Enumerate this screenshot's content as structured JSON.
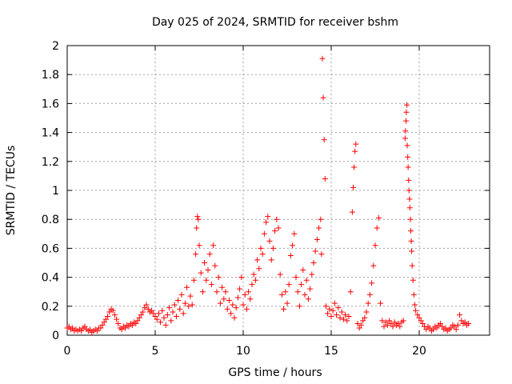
{
  "chart_data": {
    "type": "scatter",
    "title": "Day 025 of 2024, SRMTID for receiver bshm",
    "xlabel": "GPS time / hours",
    "ylabel": "SRMTID / TECUs",
    "xlim": [
      0,
      24
    ],
    "ylim": [
      0,
      2
    ],
    "xticks": [
      0,
      5,
      10,
      15,
      20
    ],
    "xtick_labels": [
      "0",
      "5",
      "10",
      "15",
      "20"
    ],
    "yticks": [
      0,
      0.2,
      0.4,
      0.6,
      0.8,
      1,
      1.2,
      1.4,
      1.6,
      1.8,
      2
    ],
    "ytick_labels": [
      "0",
      "0.2",
      "0.4",
      "0.6",
      "0.8",
      "1",
      "1.2",
      "1.4",
      "1.6",
      "1.8",
      "2"
    ],
    "grid": true,
    "marker": "+",
    "color": "#ff0000",
    "series": [
      {
        "name": "SRMTID",
        "points": [
          [
            0.0,
            0.05
          ],
          [
            0.1,
            0.06
          ],
          [
            0.2,
            0.04
          ],
          [
            0.3,
            0.05
          ],
          [
            0.4,
            0.03
          ],
          [
            0.5,
            0.04
          ],
          [
            0.6,
            0.03
          ],
          [
            0.7,
            0.04
          ],
          [
            0.8,
            0.03
          ],
          [
            0.9,
            0.05
          ],
          [
            1.0,
            0.06
          ],
          [
            1.1,
            0.04
          ],
          [
            1.2,
            0.03
          ],
          [
            1.3,
            0.04
          ],
          [
            1.4,
            0.02
          ],
          [
            1.5,
            0.03
          ],
          [
            1.6,
            0.04
          ],
          [
            1.7,
            0.03
          ],
          [
            1.8,
            0.05
          ],
          [
            1.9,
            0.05
          ],
          [
            2.0,
            0.07
          ],
          [
            2.1,
            0.09
          ],
          [
            2.2,
            0.11
          ],
          [
            2.3,
            0.13
          ],
          [
            2.4,
            0.16
          ],
          [
            2.5,
            0.18
          ],
          [
            2.6,
            0.17
          ],
          [
            2.7,
            0.14
          ],
          [
            2.8,
            0.11
          ],
          [
            2.9,
            0.08
          ],
          [
            3.0,
            0.05
          ],
          [
            3.1,
            0.04
          ],
          [
            3.2,
            0.06
          ],
          [
            3.3,
            0.05
          ],
          [
            3.4,
            0.07
          ],
          [
            3.5,
            0.06
          ],
          [
            3.6,
            0.08
          ],
          [
            3.7,
            0.07
          ],
          [
            3.8,
            0.09
          ],
          [
            3.9,
            0.08
          ],
          [
            4.0,
            0.1
          ],
          [
            4.1,
            0.12
          ],
          [
            4.2,
            0.14
          ],
          [
            4.3,
            0.16
          ],
          [
            4.4,
            0.19
          ],
          [
            4.5,
            0.21
          ],
          [
            4.6,
            0.18
          ],
          [
            4.7,
            0.16
          ],
          [
            4.8,
            0.17
          ],
          [
            4.9,
            0.15
          ],
          [
            5.0,
            0.13
          ],
          [
            5.1,
            0.11
          ],
          [
            5.2,
            0.15
          ],
          [
            5.3,
            0.09
          ],
          [
            5.4,
            0.17
          ],
          [
            5.5,
            0.12
          ],
          [
            5.6,
            0.07
          ],
          [
            5.7,
            0.14
          ],
          [
            5.8,
            0.19
          ],
          [
            5.9,
            0.1
          ],
          [
            6.0,
            0.16
          ],
          [
            6.1,
            0.21
          ],
          [
            6.2,
            0.13
          ],
          [
            6.3,
            0.24
          ],
          [
            6.4,
            0.18
          ],
          [
            6.5,
            0.28
          ],
          [
            6.6,
            0.15
          ],
          [
            6.7,
            0.22
          ],
          [
            6.8,
            0.33
          ],
          [
            6.9,
            0.2
          ],
          [
            7.0,
            0.27
          ],
          [
            7.1,
            0.21
          ],
          [
            7.2,
            0.38
          ],
          [
            7.3,
            0.56
          ],
          [
            7.35,
            0.74
          ],
          [
            7.4,
            0.82
          ],
          [
            7.45,
            0.8
          ],
          [
            7.5,
            0.62
          ],
          [
            7.6,
            0.43
          ],
          [
            7.7,
            0.3
          ],
          [
            7.8,
            0.5
          ],
          [
            7.9,
            0.38
          ],
          [
            8.0,
            0.45
          ],
          [
            8.1,
            0.56
          ],
          [
            8.2,
            0.35
          ],
          [
            8.3,
            0.62
          ],
          [
            8.4,
            0.48
          ],
          [
            8.5,
            0.3
          ],
          [
            8.6,
            0.4
          ],
          [
            8.7,
            0.22
          ],
          [
            8.8,
            0.33
          ],
          [
            8.9,
            0.25
          ],
          [
            9.0,
            0.3
          ],
          [
            9.1,
            0.18
          ],
          [
            9.2,
            0.24
          ],
          [
            9.3,
            0.15
          ],
          [
            9.4,
            0.21
          ],
          [
            9.5,
            0.12
          ],
          [
            9.6,
            0.19
          ],
          [
            9.7,
            0.26
          ],
          [
            9.8,
            0.32
          ],
          [
            9.9,
            0.4
          ],
          [
            10.0,
            0.21
          ],
          [
            10.1,
            0.28
          ],
          [
            10.2,
            0.18
          ],
          [
            10.3,
            0.3
          ],
          [
            10.4,
            0.25
          ],
          [
            10.5,
            0.35
          ],
          [
            10.6,
            0.42
          ],
          [
            10.7,
            0.38
          ],
          [
            10.8,
            0.52
          ],
          [
            10.9,
            0.46
          ],
          [
            11.0,
            0.6
          ],
          [
            11.1,
            0.56
          ],
          [
            11.2,
            0.7
          ],
          [
            11.3,
            0.78
          ],
          [
            11.4,
            0.82
          ],
          [
            11.5,
            0.65
          ],
          [
            11.6,
            0.52
          ],
          [
            11.7,
            0.6
          ],
          [
            11.8,
            0.72
          ],
          [
            11.9,
            0.8
          ],
          [
            12.0,
            0.74
          ],
          [
            12.1,
            0.42
          ],
          [
            12.2,
            0.28
          ],
          [
            12.3,
            0.18
          ],
          [
            12.4,
            0.3
          ],
          [
            12.5,
            0.22
          ],
          [
            12.6,
            0.35
          ],
          [
            12.7,
            0.55
          ],
          [
            12.8,
            0.62
          ],
          [
            12.9,
            0.7
          ],
          [
            13.0,
            0.4
          ],
          [
            13.1,
            0.3
          ],
          [
            13.2,
            0.2
          ],
          [
            13.3,
            0.35
          ],
          [
            13.4,
            0.45
          ],
          [
            13.5,
            0.28
          ],
          [
            13.6,
            0.38
          ],
          [
            13.7,
            0.25
          ],
          [
            13.8,
            0.32
          ],
          [
            13.9,
            0.42
          ],
          [
            14.0,
            0.5
          ],
          [
            14.1,
            0.58
          ],
          [
            14.2,
            0.66
          ],
          [
            14.3,
            0.74
          ],
          [
            14.4,
            0.8
          ],
          [
            14.45,
            0.56
          ],
          [
            14.5,
            1.91
          ],
          [
            14.55,
            1.64
          ],
          [
            14.6,
            1.35
          ],
          [
            14.65,
            1.08
          ],
          [
            14.7,
            0.2
          ],
          [
            14.8,
            0.15
          ],
          [
            14.9,
            0.18
          ],
          [
            15.0,
            0.13
          ],
          [
            15.1,
            0.17
          ],
          [
            15.2,
            0.22
          ],
          [
            15.3,
            0.14
          ],
          [
            15.4,
            0.19
          ],
          [
            15.5,
            0.12
          ],
          [
            15.6,
            0.16
          ],
          [
            15.7,
            0.11
          ],
          [
            15.8,
            0.14
          ],
          [
            15.9,
            0.1
          ],
          [
            16.0,
            0.13
          ],
          [
            16.1,
            0.3
          ],
          [
            16.2,
            0.85
          ],
          [
            16.25,
            1.02
          ],
          [
            16.3,
            1.16
          ],
          [
            16.35,
            1.27
          ],
          [
            16.4,
            1.32
          ],
          [
            16.5,
            0.08
          ],
          [
            16.6,
            0.05
          ],
          [
            16.7,
            0.07
          ],
          [
            16.8,
            0.1
          ],
          [
            16.9,
            0.12
          ],
          [
            17.0,
            0.16
          ],
          [
            17.1,
            0.22
          ],
          [
            17.2,
            0.28
          ],
          [
            17.3,
            0.36
          ],
          [
            17.4,
            0.48
          ],
          [
            17.5,
            0.62
          ],
          [
            17.6,
            0.74
          ],
          [
            17.7,
            0.81
          ],
          [
            17.8,
            0.22
          ],
          [
            17.9,
            0.1
          ],
          [
            18.0,
            0.06
          ],
          [
            18.1,
            0.09
          ],
          [
            18.2,
            0.07
          ],
          [
            18.3,
            0.1
          ],
          [
            18.4,
            0.08
          ],
          [
            18.5,
            0.06
          ],
          [
            18.6,
            0.09
          ],
          [
            18.7,
            0.07
          ],
          [
            18.8,
            0.08
          ],
          [
            18.9,
            0.06
          ],
          [
            19.0,
            0.09
          ],
          [
            19.1,
            0.1
          ],
          [
            19.2,
            1.36
          ],
          [
            19.22,
            1.41
          ],
          [
            19.25,
            1.48
          ],
          [
            19.27,
            1.54
          ],
          [
            19.3,
            1.59
          ],
          [
            19.32,
            1.31
          ],
          [
            19.35,
            1.23
          ],
          [
            19.37,
            1.16
          ],
          [
            19.4,
            1.07
          ],
          [
            19.42,
            1.0
          ],
          [
            19.45,
            0.94
          ],
          [
            19.47,
            0.88
          ],
          [
            19.5,
            0.8
          ],
          [
            19.52,
            0.72
          ],
          [
            19.55,
            0.65
          ],
          [
            19.57,
            0.58
          ],
          [
            19.6,
            0.48
          ],
          [
            19.65,
            0.38
          ],
          [
            19.7,
            0.28
          ],
          [
            19.75,
            0.21
          ],
          [
            19.8,
            0.17
          ],
          [
            19.9,
            0.14
          ],
          [
            20.0,
            0.12
          ],
          [
            20.1,
            0.1
          ],
          [
            20.2,
            0.08
          ],
          [
            20.3,
            0.06
          ],
          [
            20.4,
            0.04
          ],
          [
            20.5,
            0.06
          ],
          [
            20.6,
            0.05
          ],
          [
            20.7,
            0.03
          ],
          [
            20.8,
            0.04
          ],
          [
            20.9,
            0.06
          ],
          [
            21.0,
            0.05
          ],
          [
            21.1,
            0.07
          ],
          [
            21.2,
            0.08
          ],
          [
            21.3,
            0.06
          ],
          [
            21.4,
            0.04
          ],
          [
            21.5,
            0.05
          ],
          [
            21.6,
            0.03
          ],
          [
            21.7,
            0.04
          ],
          [
            21.8,
            0.05
          ],
          [
            21.9,
            0.07
          ],
          [
            22.0,
            0.06
          ],
          [
            22.1,
            0.04
          ],
          [
            22.2,
            0.07
          ],
          [
            22.3,
            0.14
          ],
          [
            22.4,
            0.1
          ],
          [
            22.5,
            0.08
          ],
          [
            22.6,
            0.09
          ],
          [
            22.7,
            0.07
          ],
          [
            22.8,
            0.08
          ]
        ]
      }
    ]
  }
}
